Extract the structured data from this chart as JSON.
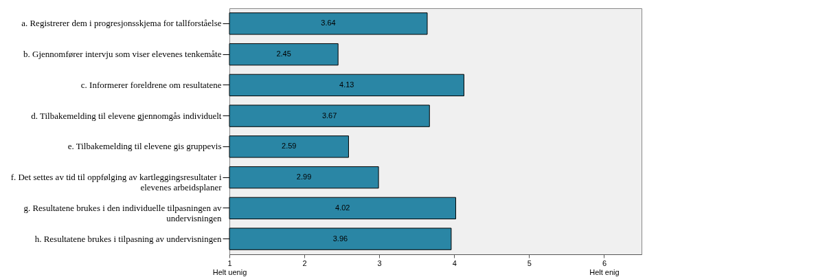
{
  "chart_data": {
    "type": "bar",
    "orientation": "horizontal",
    "categories": [
      "a.  Registrerer dem i progresjonsskjema for tallforståelse",
      "b.  Gjennomfører intervju som viser elevenes tenkemåte",
      "c.  Informerer foreldrene om resultatene",
      "d.  Tilbakemelding til elevene gjennomgås individuelt",
      "e.  Tilbakemelding til elevene gis gruppevis",
      "f.   Det settes av tid til oppfølging av kartleggingsresultater i\nelevenes arbeidsplaner",
      "g.  Resultatene brukes i den individuelle tilpasningen av\nundervisningen",
      "h.   Resultatene brukes i tilpasning av undervisningen"
    ],
    "values": [
      3.64,
      2.45,
      4.13,
      3.67,
      2.59,
      2.99,
      4.02,
      3.96
    ],
    "color": "#2a86a5",
    "xlim": [
      1,
      6.5
    ],
    "xticks": [
      {
        "value": 1,
        "label": "1\nHelt   uenig"
      },
      2,
      3,
      4,
      5,
      {
        "value": 6,
        "label": "6\nHelt    enig"
      }
    ],
    "data_labels": true,
    "grid": false
  }
}
